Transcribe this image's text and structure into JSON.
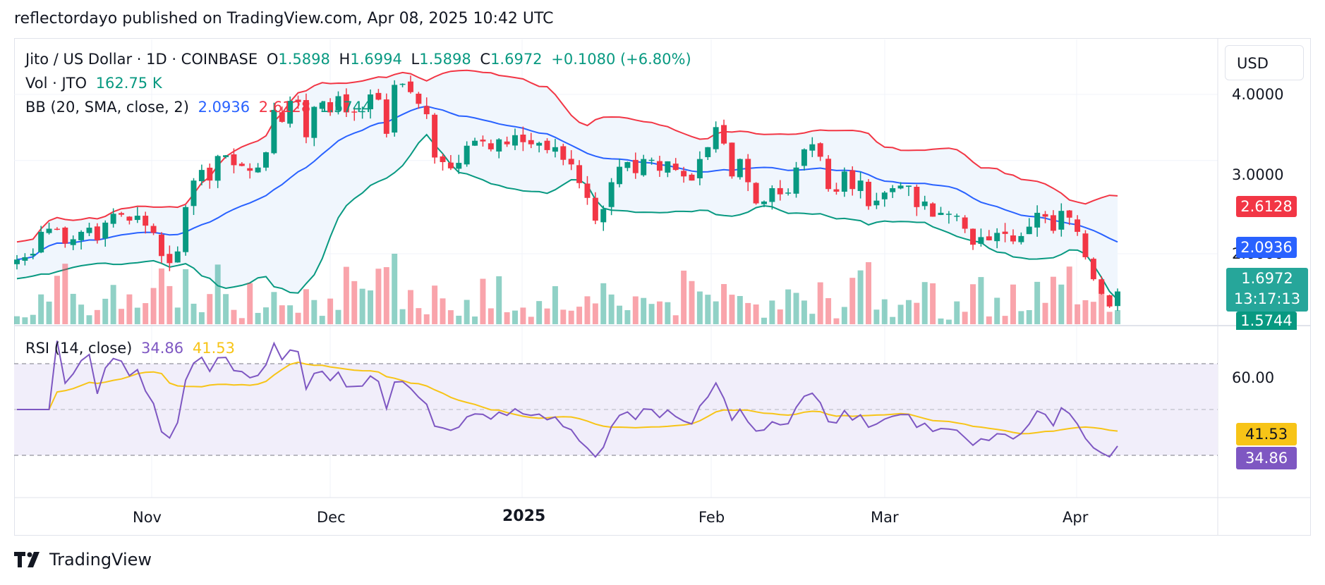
{
  "header": {
    "published": "reflectordayo published on TradingView.com, Apr 08, 2025 10:42 UTC"
  },
  "legend": {
    "symbol": "Jito / US Dollar · 1D · COINBASE",
    "o_label": "O",
    "o": "1.5898",
    "h_label": "H",
    "h": "1.6994",
    "l_label": "L",
    "l": "1.5898",
    "c_label": "C",
    "c": "1.6972",
    "change": "+0.1080 (+6.80%)",
    "vol_label": "Vol · JTO",
    "vol": "162.75 K",
    "bb_label": "BB (20, SMA, close, 2)",
    "bb_basis": "2.0936",
    "bb_upper": "2.6128",
    "bb_lower": "1.5744",
    "rsi_label": "RSI (14, close)",
    "rsi": "34.86",
    "rsi_ma": "41.53"
  },
  "currency": "USD",
  "price_axis": {
    "ticks": [
      "4.0000",
      "3.0000",
      "2.0000"
    ],
    "bb_upper_badge": "2.6128",
    "bb_basis_badge": "2.0936",
    "price_badge": "1.6972",
    "countdown": "13:17:13",
    "bb_lower_badge": "1.5744"
  },
  "rsi_axis": {
    "ticks": [
      "60.00"
    ],
    "rsi_ma_badge": "41.53",
    "rsi_badge": "34.86"
  },
  "time_axis": [
    "Nov",
    "Dec",
    "2025",
    "Feb",
    "Mar",
    "Apr"
  ],
  "footer": {
    "brand": "TradingView"
  },
  "colors": {
    "up": "#089981",
    "down": "#f23645",
    "bb_basis": "#2962ff",
    "bb_upper": "#f23645",
    "bb_lower": "#089981",
    "bb_fill": "#f0f6fd",
    "rsi": "#7e57c2",
    "rsi_ma": "#f7c417",
    "rsi_band": "#f1eefa"
  },
  "chart_data": [
    {
      "type": "candlestick",
      "title": "Jito / US Dollar · 1D · COINBASE",
      "y_scale": "log",
      "y_ticks": [
        4.0,
        3.0,
        2.0
      ],
      "x_ticks": [
        "Nov",
        "Dec",
        "2025",
        "Feb",
        "Mar",
        "Apr"
      ],
      "last": {
        "open": 1.5898,
        "high": 1.6994,
        "low": 1.5898,
        "close": 1.6972,
        "change": 0.108,
        "change_pct": 6.8
      },
      "close_series": [
        1.95,
        1.97,
        2.0,
        2.2,
        2.23,
        2.22,
        2.09,
        2.13,
        2.2,
        2.24,
        2.12,
        2.29,
        2.38,
        2.37,
        2.31,
        2.36,
        2.26,
        2.19,
        1.98,
        1.92,
        2.02,
        2.45,
        2.75,
        2.88,
        2.75,
        3.06,
        3.07,
        2.94,
        2.93,
        2.87,
        2.91,
        3.11,
        3.74,
        3.55,
        3.89,
        3.87,
        3.32,
        3.79,
        3.86,
        3.7,
        3.97,
        3.7,
        3.71,
        3.72,
        4.0,
        3.91,
        3.37,
        4.17,
        4.19,
        4.04,
        3.84,
        3.67,
        3.04,
        2.98,
        2.9,
        2.97,
        3.2,
        3.27,
        3.26,
        3.15,
        3.29,
        3.22,
        3.35,
        3.25,
        3.22,
        3.24,
        3.14,
        3.18,
        3.01,
        2.95,
        2.72,
        2.55,
        2.31,
        2.43,
        2.73,
        2.92,
        2.98,
        2.84,
        3.02,
        3.01,
        2.87,
        2.99,
        2.88,
        2.8,
        2.75,
        3.02,
        3.18,
        3.47,
        3.23,
        2.8,
        3.02,
        2.73,
        2.49,
        2.51,
        2.66,
        2.59,
        2.61,
        2.91,
        3.15,
        3.22,
        3.05,
        2.65,
        2.62,
        2.86,
        2.65,
        2.75,
        2.46,
        2.52,
        2.61,
        2.66,
        2.69,
        2.69,
        2.45,
        2.51,
        2.35,
        2.39,
        2.38,
        2.36,
        2.23,
        2.08,
        2.15,
        2.12,
        2.19,
        2.18,
        2.11,
        2.16,
        2.25,
        2.39,
        2.35,
        2.21,
        2.41,
        2.34,
        2.2,
        1.97,
        1.79,
        1.68,
        1.59,
        1.6972
      ],
      "bollinger_bands": {
        "length": 20,
        "basis": 2.0936,
        "upper": 2.6128,
        "lower": 1.5744
      },
      "y_axis_badges": {
        "bb_upper": 2.6128,
        "bb_basis": 2.0936,
        "price": 1.6972,
        "bb_lower": 1.5744
      },
      "countdown": "13:17:13"
    },
    {
      "type": "bar",
      "title": "Vol · JTO",
      "last_value": "162.75 K"
    },
    {
      "type": "line",
      "title": "RSI (14, close)",
      "y_ticks": [
        60.0
      ],
      "band": [
        30,
        70
      ],
      "last": {
        "rsi": 34.86,
        "rsi_ma": 41.53
      }
    }
  ]
}
